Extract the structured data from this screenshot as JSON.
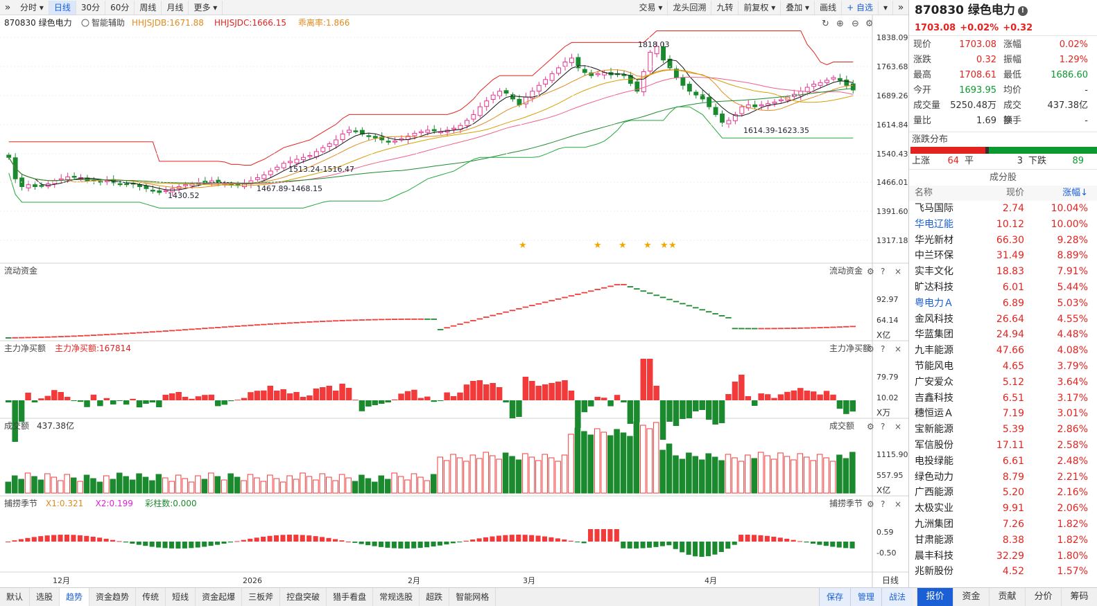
{
  "toolbar": {
    "expand_icon": "»",
    "periods": [
      "分时 ▾",
      "日线",
      "30分",
      "60分",
      "周线",
      "月线",
      "更多 ▾"
    ],
    "active_period": "日线",
    "right_buttons": [
      "交易 ▾",
      "龙头回溯",
      "九转",
      "前复权 ▾",
      "叠加 ▾",
      "画线"
    ],
    "watch_label": "+ 自选",
    "more_icon": "▾",
    "collapse_icon": "»"
  },
  "chart": {
    "stock_label": "870830 绿色电力",
    "assist_label": "智能辅助",
    "hhjsjdb": "HHJSJDB:1671.88",
    "hhjsjdc": "HHJSJDC:1666.15",
    "deviation": "乖离率:1.866",
    "price_axis": [
      "1838.09",
      "1763.68",
      "1689.26",
      "1614.84",
      "1540.43",
      "1466.01",
      "1391.60",
      "1317.18"
    ],
    "annotations": [
      "1818.03",
      "1513.24-1516.47",
      "1467.89-1468.15",
      "1430.52",
      "1614.39-1623.35"
    ],
    "x_labels": [
      "12月",
      "2026",
      "2月",
      "3月",
      "4月"
    ],
    "period_label": "日线"
  },
  "panels": {
    "flow": {
      "title": "流动资金",
      "right_title": "流动资金",
      "axis": [
        "92.97",
        "64.14"
      ],
      "unit": "X亿"
    },
    "mainnet": {
      "title": "主力净买额",
      "value": "主力净买额:167814",
      "right_title": "主力净买额",
      "axis": [
        "79.79",
        "10.02"
      ],
      "unit": "X万"
    },
    "volume": {
      "title": "成交额",
      "value": "437.38亿",
      "right_title": "成交额",
      "axis": [
        "1115.90",
        "557.95"
      ],
      "unit": "X亿"
    },
    "season": {
      "title": "捕捞季节",
      "x1": "X1:0.321",
      "x2": "X2:0.199",
      "bars": "彩柱数:0.000",
      "right_title": "捕捞季节",
      "axis": [
        "0.59",
        "-0.50"
      ]
    }
  },
  "quote": {
    "code_name": "870830 绿色电力",
    "price": "1703.08",
    "change_pct": "+0.02%",
    "change": "+0.32",
    "rows": [
      {
        "k": "现价",
        "v": "1703.08",
        "k2": "涨幅",
        "v2": "0.02%"
      },
      {
        "k": "涨跌",
        "v": "0.32",
        "k2": "振幅",
        "v2": "1.29%"
      },
      {
        "k": "最高",
        "v": "1708.61",
        "k2": "最低",
        "v2": "1686.60"
      },
      {
        "k": "今开",
        "v": "1693.95",
        "k2": "均价",
        "v2": "-"
      },
      {
        "k": "成交量",
        "v": "5250.48万",
        "k2": "成交额",
        "v2": "437.38亿"
      },
      {
        "k": "量比",
        "v": "1.69",
        "k2": "换手",
        "v2": "-"
      }
    ],
    "dist_title": "涨跌分布",
    "up_label": "上涨",
    "up_count": "64",
    "flat_label": "平",
    "flat_count": "3",
    "down_label": "下跌",
    "down_count": "89"
  },
  "constituents": {
    "title": "成分股",
    "headers": [
      "名称",
      "现价",
      "涨幅↓"
    ],
    "rows": [
      {
        "name": "飞马国际",
        "price": "2.74",
        "chg": "10.04%"
      },
      {
        "name": "华电辽能",
        "price": "10.12",
        "chg": "10.00%"
      },
      {
        "name": "华光新材",
        "price": "66.30",
        "chg": "9.28%"
      },
      {
        "name": "中兰环保",
        "price": "31.49",
        "chg": "8.89%"
      },
      {
        "name": "实丰文化",
        "price": "18.83",
        "chg": "7.91%"
      },
      {
        "name": "旷达科技",
        "price": "6.01",
        "chg": "5.44%"
      },
      {
        "name": "粤电力Ａ",
        "price": "6.89",
        "chg": "5.03%"
      },
      {
        "name": "金风科技",
        "price": "26.64",
        "chg": "4.55%"
      },
      {
        "name": "华蓝集团",
        "price": "24.94",
        "chg": "4.48%"
      },
      {
        "name": "九丰能源",
        "price": "47.66",
        "chg": "4.08%"
      },
      {
        "name": "节能风电",
        "price": "4.65",
        "chg": "3.79%"
      },
      {
        "name": "广安爱众",
        "price": "5.12",
        "chg": "3.64%"
      },
      {
        "name": "吉鑫科技",
        "price": "6.51",
        "chg": "3.17%"
      },
      {
        "name": "穗恒运Ａ",
        "price": "7.19",
        "chg": "3.01%"
      },
      {
        "name": "宝新能源",
        "price": "5.39",
        "chg": "2.86%"
      },
      {
        "name": "军信股份",
        "price": "17.11",
        "chg": "2.58%"
      },
      {
        "name": "电投绿能",
        "price": "6.61",
        "chg": "2.48%"
      },
      {
        "name": "绿色动力",
        "price": "8.79",
        "chg": "2.21%"
      },
      {
        "name": "广西能源",
        "price": "5.20",
        "chg": "2.16%"
      },
      {
        "name": "太极实业",
        "price": "9.91",
        "chg": "2.06%"
      },
      {
        "name": "九洲集团",
        "price": "7.26",
        "chg": "1.82%"
      },
      {
        "name": "甘肃能源",
        "price": "8.38",
        "chg": "1.82%"
      },
      {
        "name": "晨丰科技",
        "price": "32.29",
        "chg": "1.80%"
      },
      {
        "name": "兆新股份",
        "price": "4.52",
        "chg": "1.57%"
      }
    ]
  },
  "bottom": {
    "tabs": [
      "默认",
      "选股",
      "趋势",
      "资金趋势",
      "传统",
      "短线",
      "资金起爆",
      "三板斧",
      "控盘突破",
      "猎手看盘",
      "常规选股",
      "超跌",
      "智能网格"
    ],
    "active": "趋势",
    "right_buttons": [
      "保存",
      "管理",
      "战法"
    ],
    "panel_tabs": [
      "报价",
      "资金",
      "贡献",
      "分价",
      "筹码"
    ],
    "panel_active": "报价"
  },
  "chart_data": {
    "type": "candlestick",
    "y_ticks": [
      1838.09,
      1763.68,
      1689.26,
      1614.84,
      1540.43,
      1466.01,
      1391.6,
      1317.18
    ],
    "x_labels": [
      "12月",
      "2026",
      "2月",
      "3月",
      "4月"
    ],
    "closes": [
      1530,
      1475,
      1455,
      1460,
      1455,
      1458,
      1462,
      1470,
      1475,
      1480,
      1480,
      1478,
      1470,
      1472,
      1468,
      1470,
      1465,
      1462,
      1460,
      1462,
      1455,
      1450,
      1445,
      1440,
      1445,
      1450,
      1455,
      1460,
      1462,
      1465,
      1468,
      1470,
      1466,
      1462,
      1460,
      1458,
      1462,
      1470,
      1478,
      1485,
      1495,
      1505,
      1515,
      1520,
      1525,
      1530,
      1535,
      1545,
      1555,
      1565,
      1575,
      1590,
      1600,
      1598,
      1590,
      1585,
      1580,
      1575,
      1570,
      1572,
      1578,
      1585,
      1592,
      1596,
      1600,
      1598,
      1596,
      1600,
      1605,
      1612,
      1625,
      1640,
      1660,
      1675,
      1690,
      1700,
      1695,
      1680,
      1665,
      1685,
      1700,
      1715,
      1730,
      1745,
      1760,
      1775,
      1785,
      1760,
      1748,
      1740,
      1745,
      1748,
      1742,
      1745,
      1740,
      1720,
      1700,
      1750,
      1800,
      1815,
      1780,
      1760,
      1735,
      1715,
      1700,
      1690,
      1680,
      1660,
      1640,
      1620,
      1625,
      1640,
      1660,
      1665,
      1660,
      1665,
      1668,
      1672,
      1678,
      1685,
      1692,
      1700,
      1710,
      1718,
      1722,
      1728,
      1735,
      1728,
      1715,
      1703
    ],
    "volume_unit": "亿"
  }
}
